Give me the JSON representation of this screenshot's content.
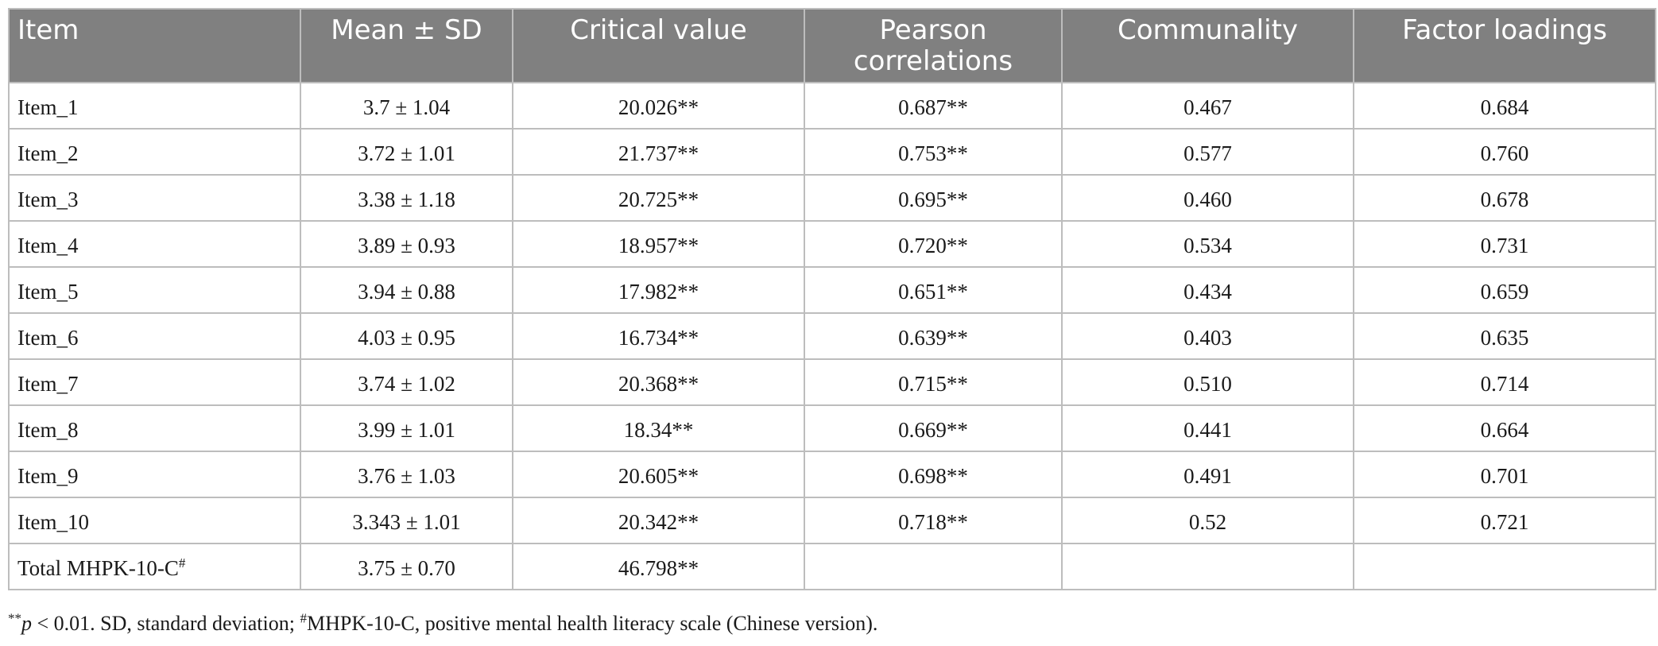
{
  "table": {
    "headers": [
      "Item",
      "Mean ± SD",
      "Critical value",
      "Pearson correlations",
      "Communality",
      "Factor loadings"
    ],
    "rows": [
      [
        "Item_1",
        "3.7 ± 1.04",
        "20.026**",
        "0.687**",
        "0.467",
        "0.684"
      ],
      [
        "Item_2",
        "3.72 ± 1.01",
        "21.737**",
        "0.753**",
        "0.577",
        "0.760"
      ],
      [
        "Item_3",
        "3.38 ± 1.18",
        "20.725**",
        "0.695**",
        "0.460",
        "0.678"
      ],
      [
        "Item_4",
        "3.89 ± 0.93",
        "18.957**",
        "0.720**",
        "0.534",
        "0.731"
      ],
      [
        "Item_5",
        "3.94 ± 0.88",
        "17.982**",
        "0.651**",
        "0.434",
        "0.659"
      ],
      [
        "Item_6",
        "4.03 ± 0.95",
        "16.734**",
        "0.639**",
        "0.403",
        "0.635"
      ],
      [
        "Item_7",
        "3.74 ± 1.02",
        "20.368**",
        "0.715**",
        "0.510",
        "0.714"
      ],
      [
        "Item_8",
        "3.99 ± 1.01",
        "18.34**",
        "0.669**",
        "0.441",
        "0.664"
      ],
      [
        "Item_9",
        "3.76 ± 1.03",
        "20.605**",
        "0.698**",
        "0.491",
        "0.701"
      ],
      [
        "Item_10",
        "3.343 ± 1.01",
        "20.342**",
        "0.718**",
        "0.52",
        "0.721"
      ]
    ],
    "total_row": {
      "label": "Total MHPK-10-C",
      "label_sup": "#",
      "mean_sd": "3.75 ± 0.70",
      "critical_value": "46.798**",
      "pearson": "",
      "communality": "",
      "loadings": ""
    }
  },
  "footnote": {
    "stars": "**",
    "p": "p",
    "text_a": " < 0.01. SD, standard deviation; ",
    "hash": "#",
    "text_b": "MHPK-10-C, positive mental health literacy scale (Chinese version)."
  },
  "colors": {
    "header_bg": "#808080",
    "header_text": "#ffffff",
    "border": "#bdbdbd"
  }
}
